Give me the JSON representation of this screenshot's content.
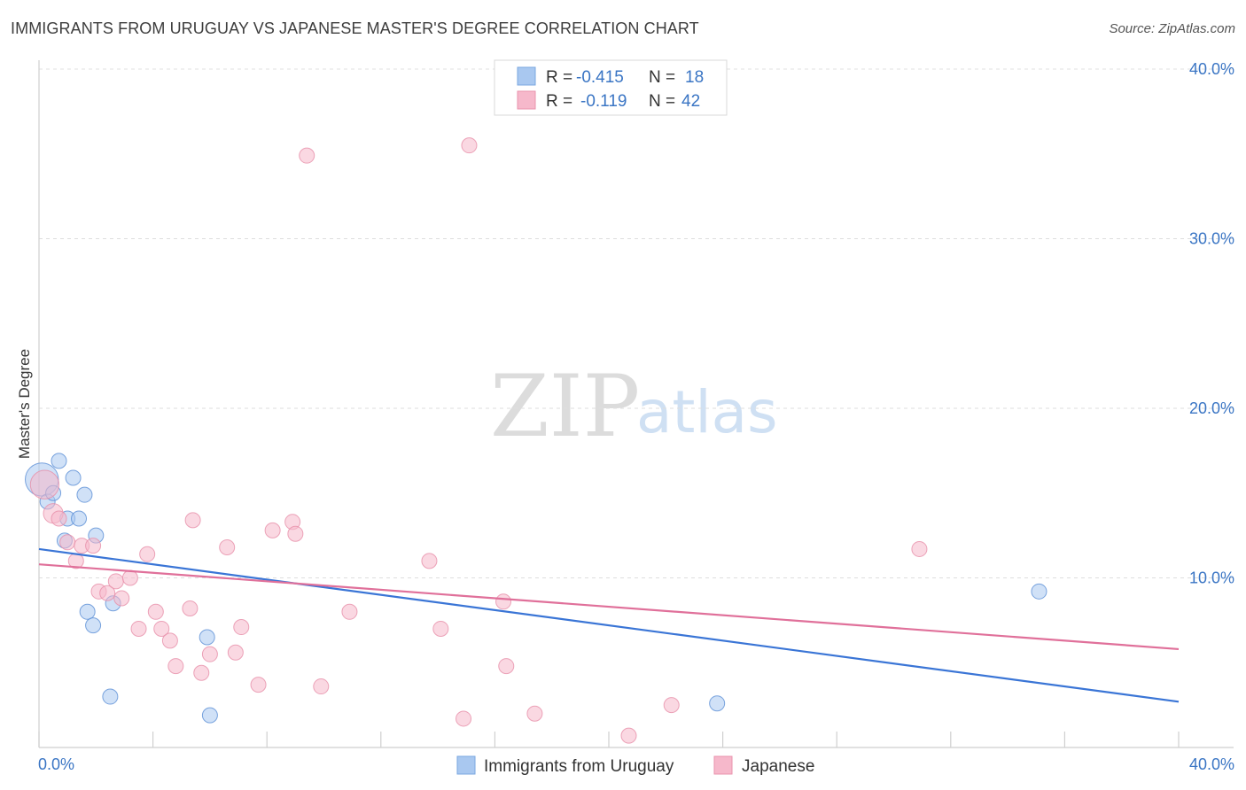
{
  "header": {
    "title": "IMMIGRANTS FROM URUGUAY VS JAPANESE MASTER'S DEGREE CORRELATION CHART",
    "source": "Source: ZipAtlas.com"
  },
  "watermark": {
    "zip": "ZIP",
    "atlas": "atlas"
  },
  "legend": {
    "rows": [
      {
        "r_label": "R =",
        "r_value": "-0.415",
        "n_label": "N =",
        "n_value": "18",
        "color": "#a9c8f0"
      },
      {
        "r_label": "R =",
        "r_value": "-0.119",
        "n_label": "N =",
        "n_value": "42",
        "color": "#f6b8cb"
      }
    ]
  },
  "bottom_legend": {
    "items": [
      {
        "label": "Immigrants from Uruguay",
        "color": "#a9c8f0"
      },
      {
        "label": "Japanese",
        "color": "#f6b8cb"
      }
    ]
  },
  "chart_data": {
    "type": "scatter",
    "title": "IMMIGRANTS FROM URUGUAY VS JAPANESE MASTER'S DEGREE CORRELATION CHART",
    "xlabel": "",
    "ylabel": "Master's Degree",
    "xlim": [
      0,
      40
    ],
    "ylim": [
      0,
      42
    ],
    "x_tick_labels": [
      "0.0%",
      "40.0%"
    ],
    "y_ticks": [
      10,
      20,
      30,
      40
    ],
    "y_tick_labels": [
      "10.0%",
      "20.0%",
      "30.0%",
      "40.0%"
    ],
    "grid": true,
    "series": [
      {
        "name": "Immigrants from Uruguay",
        "color": "#a9c8f0",
        "stroke": "#5b8fd6",
        "trend_color": "#3a75d6",
        "trend": {
          "x": [
            0,
            40
          ],
          "y": [
            11.7,
            2.7
          ]
        },
        "points": [
          [
            0.1,
            15.8,
            2.2
          ],
          [
            0.3,
            14.5,
            1
          ],
          [
            0.5,
            15.0,
            1
          ],
          [
            0.7,
            16.9,
            1
          ],
          [
            0.9,
            12.2,
            1
          ],
          [
            1.0,
            13.5,
            1
          ],
          [
            1.2,
            15.9,
            1
          ],
          [
            1.4,
            13.5,
            1
          ],
          [
            1.6,
            14.9,
            1
          ],
          [
            1.7,
            8.0,
            1
          ],
          [
            1.9,
            7.2,
            1
          ],
          [
            2.0,
            12.5,
            1
          ],
          [
            2.5,
            3.0,
            1
          ],
          [
            2.6,
            8.5,
            1
          ],
          [
            5.9,
            6.5,
            1
          ],
          [
            6.0,
            1.9,
            1
          ],
          [
            23.8,
            2.6,
            1
          ],
          [
            35.1,
            9.2,
            1
          ]
        ]
      },
      {
        "name": "Japanese",
        "color": "#f6b8cb",
        "stroke": "#e78fa9",
        "trend_color": "#e0709a",
        "trend": {
          "x": [
            0,
            40
          ],
          "y": [
            10.8,
            5.8
          ]
        },
        "points": [
          [
            0.2,
            15.5,
            1.9
          ],
          [
            0.5,
            13.8,
            1.3
          ],
          [
            0.7,
            13.5,
            1
          ],
          [
            1.0,
            12.1,
            1
          ],
          [
            1.3,
            11.0,
            1
          ],
          [
            1.5,
            11.9,
            1
          ],
          [
            1.9,
            11.9,
            1
          ],
          [
            2.1,
            9.2,
            1
          ],
          [
            2.4,
            9.1,
            1
          ],
          [
            2.7,
            9.8,
            1
          ],
          [
            2.9,
            8.8,
            1
          ],
          [
            3.2,
            10.0,
            1
          ],
          [
            3.5,
            7.0,
            1
          ],
          [
            3.8,
            11.4,
            1
          ],
          [
            4.1,
            8.0,
            1
          ],
          [
            4.3,
            7.0,
            1
          ],
          [
            4.6,
            6.3,
            1
          ],
          [
            4.8,
            4.8,
            1
          ],
          [
            5.3,
            8.2,
            1
          ],
          [
            5.4,
            13.4,
            1
          ],
          [
            5.7,
            4.4,
            1
          ],
          [
            6.0,
            5.5,
            1
          ],
          [
            6.6,
            11.8,
            1
          ],
          [
            6.9,
            5.6,
            1
          ],
          [
            7.1,
            7.1,
            1
          ],
          [
            7.7,
            3.7,
            1
          ],
          [
            8.2,
            12.8,
            1
          ],
          [
            8.9,
            13.3,
            1
          ],
          [
            9.0,
            12.6,
            1
          ],
          [
            9.4,
            34.9,
            1
          ],
          [
            9.9,
            3.6,
            1
          ],
          [
            10.9,
            8.0,
            1
          ],
          [
            13.7,
            11.0,
            1
          ],
          [
            14.1,
            7.0,
            1
          ],
          [
            14.9,
            1.7,
            1
          ],
          [
            15.1,
            35.5,
            1
          ],
          [
            16.3,
            8.6,
            1
          ],
          [
            16.4,
            4.8,
            1
          ],
          [
            17.4,
            2.0,
            1
          ],
          [
            20.7,
            0.7,
            1
          ],
          [
            22.2,
            2.5,
            1
          ],
          [
            30.9,
            11.7,
            1
          ]
        ]
      }
    ]
  }
}
